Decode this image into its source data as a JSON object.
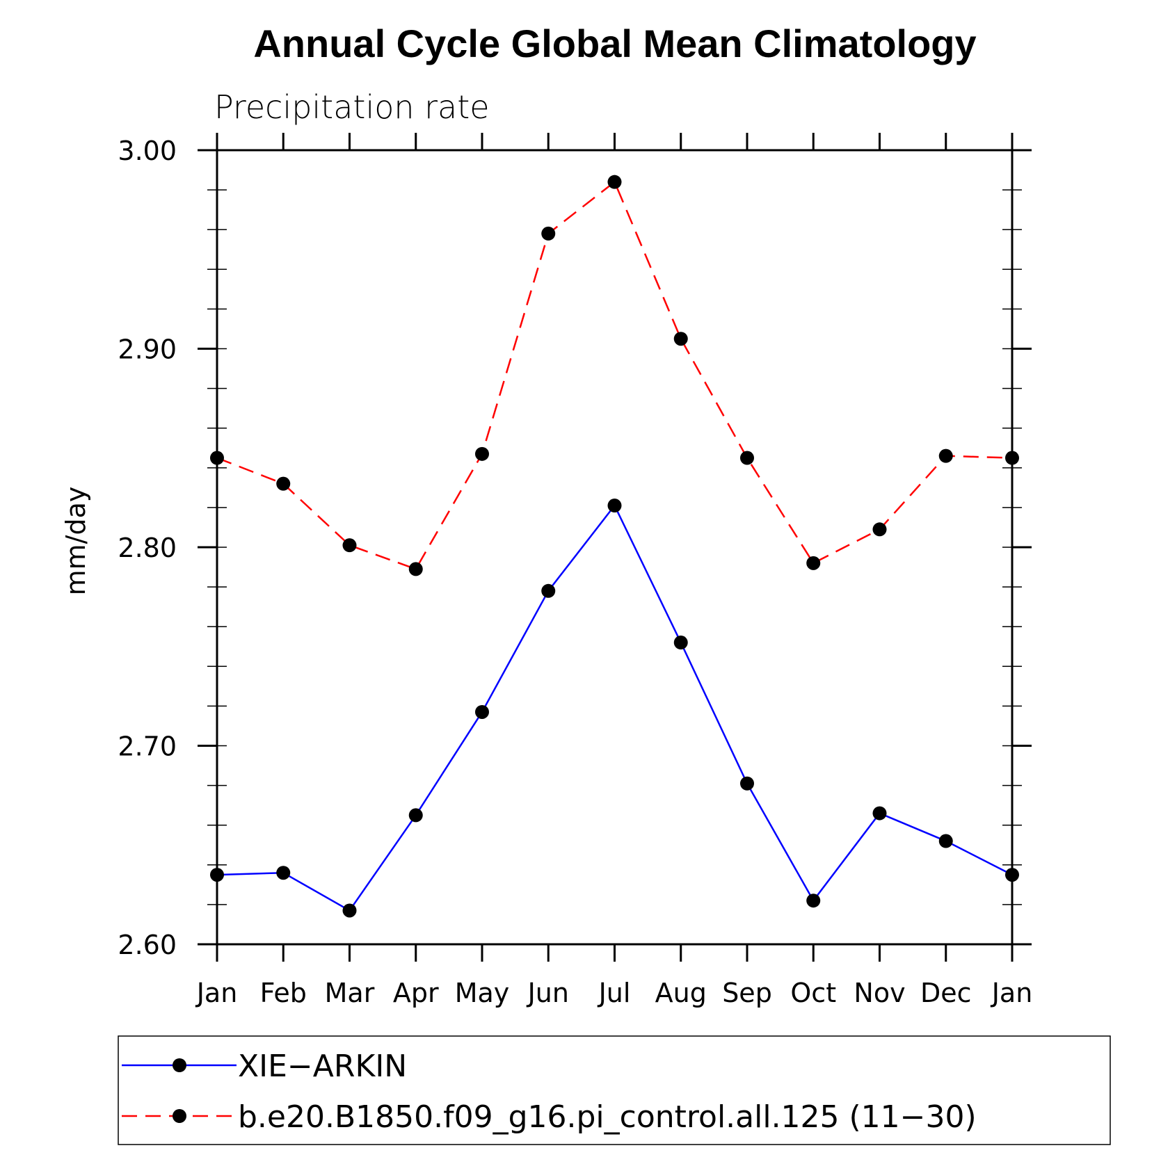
{
  "chart_data": {
    "type": "line",
    "title": "Annual Cycle Global Mean Climatology",
    "subtitle": "Precipitation rate",
    "ylabel": "mm/day",
    "xlabel": "",
    "categories": [
      "Jan",
      "Feb",
      "Mar",
      "Apr",
      "May",
      "Jun",
      "Jul",
      "Aug",
      "Sep",
      "Oct",
      "Nov",
      "Dec",
      "Jan"
    ],
    "ylim": [
      2.6,
      3.0
    ],
    "yticks": [
      "2.60",
      "2.70",
      "2.80",
      "2.90",
      "3.00"
    ],
    "grid": false,
    "legend_position": "bottom",
    "series": [
      {
        "name": "XIE−ARKIN",
        "color": "#0000ff",
        "line_style": "solid",
        "marker": "filled-circle",
        "values": [
          2.635,
          2.636,
          2.617,
          2.665,
          2.717,
          2.778,
          2.821,
          2.752,
          2.681,
          2.622,
          2.666,
          2.652,
          2.635
        ]
      },
      {
        "name": "b.e20.B1850.f09_g16.pi_control.all.125 (11−30)",
        "color": "#ff0000",
        "line_style": "dashed",
        "marker": "filled-circle",
        "values": [
          2.845,
          2.832,
          2.801,
          2.789,
          2.847,
          2.958,
          2.984,
          2.905,
          2.845,
          2.792,
          2.809,
          2.846,
          2.845
        ]
      }
    ]
  }
}
